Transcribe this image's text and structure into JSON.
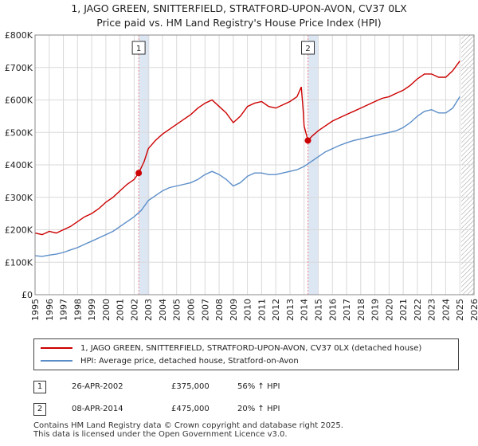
{
  "title_line1": "1, JAGO GREEN, SNITTERFIELD, STRATFORD-UPON-AVON, CV37 0LX",
  "title_line2": "Price paid vs. HM Land Registry's House Price Index (HPI)",
  "colors": {
    "property": "#cc0000",
    "hpi": "#5b8ec9",
    "sale_band": "#dde6f3",
    "future_hatch": "#999999"
  },
  "chart_data": {
    "type": "line",
    "xlim": [
      1995,
      2026
    ],
    "ylim": [
      0,
      800000
    ],
    "x_ticks": [
      1995,
      1996,
      1997,
      1998,
      1999,
      2000,
      2001,
      2002,
      2003,
      2004,
      2005,
      2006,
      2007,
      2008,
      2009,
      2010,
      2011,
      2012,
      2013,
      2014,
      2015,
      2016,
      2017,
      2018,
      2019,
      2020,
      2021,
      2022,
      2023,
      2024,
      2025,
      2026
    ],
    "y_ticks": [
      0,
      100000,
      200000,
      300000,
      400000,
      500000,
      600000,
      700000,
      800000
    ],
    "y_tick_labels": [
      "£0",
      "£100K",
      "£200K",
      "£300K",
      "£400K",
      "£500K",
      "£600K",
      "£700K",
      "£800K"
    ],
    "series": [
      {
        "name": "1, JAGO GREEN, SNITTERFIELD, STRATFORD-UPON-AVON, CV37 0LX (detached house)",
        "color": "#cc0000",
        "points": [
          [
            1995,
            190000
          ],
          [
            1995.5,
            185000
          ],
          [
            1996,
            195000
          ],
          [
            1996.5,
            190000
          ],
          [
            1997,
            200000
          ],
          [
            1997.5,
            210000
          ],
          [
            1998,
            225000
          ],
          [
            1998.5,
            240000
          ],
          [
            1999,
            250000
          ],
          [
            1999.5,
            265000
          ],
          [
            2000,
            285000
          ],
          [
            2000.5,
            300000
          ],
          [
            2001,
            320000
          ],
          [
            2001.5,
            340000
          ],
          [
            2002,
            355000
          ],
          [
            2002.32,
            375000
          ],
          [
            2002.7,
            410000
          ],
          [
            2003,
            450000
          ],
          [
            2003.5,
            475000
          ],
          [
            2004,
            495000
          ],
          [
            2004.5,
            510000
          ],
          [
            2005,
            525000
          ],
          [
            2005.5,
            540000
          ],
          [
            2006,
            555000
          ],
          [
            2006.5,
            575000
          ],
          [
            2007,
            590000
          ],
          [
            2007.5,
            600000
          ],
          [
            2008,
            580000
          ],
          [
            2008.5,
            560000
          ],
          [
            2009,
            530000
          ],
          [
            2009.5,
            550000
          ],
          [
            2010,
            580000
          ],
          [
            2010.5,
            590000
          ],
          [
            2011,
            595000
          ],
          [
            2011.5,
            580000
          ],
          [
            2012,
            575000
          ],
          [
            2012.5,
            585000
          ],
          [
            2013,
            595000
          ],
          [
            2013.5,
            610000
          ],
          [
            2013.8,
            640000
          ],
          [
            2013.95,
            560000
          ],
          [
            2014,
            520000
          ],
          [
            2014.27,
            475000
          ],
          [
            2014.6,
            490000
          ],
          [
            2015,
            505000
          ],
          [
            2015.5,
            520000
          ],
          [
            2016,
            535000
          ],
          [
            2016.5,
            545000
          ],
          [
            2017,
            555000
          ],
          [
            2017.5,
            565000
          ],
          [
            2018,
            575000
          ],
          [
            2018.5,
            585000
          ],
          [
            2019,
            595000
          ],
          [
            2019.5,
            605000
          ],
          [
            2020,
            610000
          ],
          [
            2020.5,
            620000
          ],
          [
            2021,
            630000
          ],
          [
            2021.5,
            645000
          ],
          [
            2022,
            665000
          ],
          [
            2022.5,
            680000
          ],
          [
            2023,
            680000
          ],
          [
            2023.5,
            670000
          ],
          [
            2024,
            670000
          ],
          [
            2024.5,
            690000
          ],
          [
            2025,
            720000
          ]
        ]
      },
      {
        "name": "HPI: Average price, detached house, Stratford-on-Avon",
        "color": "#5b8ec9",
        "points": [
          [
            1995,
            120000
          ],
          [
            1995.5,
            118000
          ],
          [
            1996,
            122000
          ],
          [
            1996.5,
            125000
          ],
          [
            1997,
            130000
          ],
          [
            1997.5,
            138000
          ],
          [
            1998,
            145000
          ],
          [
            1998.5,
            155000
          ],
          [
            1999,
            165000
          ],
          [
            1999.5,
            175000
          ],
          [
            2000,
            185000
          ],
          [
            2000.5,
            195000
          ],
          [
            2001,
            210000
          ],
          [
            2001.5,
            225000
          ],
          [
            2002,
            240000
          ],
          [
            2002.5,
            260000
          ],
          [
            2003,
            290000
          ],
          [
            2003.5,
            305000
          ],
          [
            2004,
            320000
          ],
          [
            2004.5,
            330000
          ],
          [
            2005,
            335000
          ],
          [
            2005.5,
            340000
          ],
          [
            2006,
            345000
          ],
          [
            2006.5,
            355000
          ],
          [
            2007,
            370000
          ],
          [
            2007.5,
            380000
          ],
          [
            2008,
            370000
          ],
          [
            2008.5,
            355000
          ],
          [
            2009,
            335000
          ],
          [
            2009.5,
            345000
          ],
          [
            2010,
            365000
          ],
          [
            2010.5,
            375000
          ],
          [
            2011,
            375000
          ],
          [
            2011.5,
            370000
          ],
          [
            2012,
            370000
          ],
          [
            2012.5,
            375000
          ],
          [
            2013,
            380000
          ],
          [
            2013.5,
            385000
          ],
          [
            2014,
            395000
          ],
          [
            2014.5,
            410000
          ],
          [
            2015,
            425000
          ],
          [
            2015.5,
            440000
          ],
          [
            2016,
            450000
          ],
          [
            2016.5,
            460000
          ],
          [
            2017,
            468000
          ],
          [
            2017.5,
            475000
          ],
          [
            2018,
            480000
          ],
          [
            2018.5,
            485000
          ],
          [
            2019,
            490000
          ],
          [
            2019.5,
            495000
          ],
          [
            2020,
            500000
          ],
          [
            2020.5,
            505000
          ],
          [
            2021,
            515000
          ],
          [
            2021.5,
            530000
          ],
          [
            2022,
            550000
          ],
          [
            2022.5,
            565000
          ],
          [
            2023,
            570000
          ],
          [
            2023.5,
            560000
          ],
          [
            2024,
            560000
          ],
          [
            2024.5,
            575000
          ],
          [
            2025,
            610000
          ]
        ]
      }
    ],
    "sales": [
      {
        "label": "1",
        "x": 2002.32,
        "y": 375000
      },
      {
        "label": "2",
        "x": 2014.27,
        "y": 475000
      }
    ],
    "future_from": 2025.1
  },
  "legend": {
    "property": "1, JAGO GREEN, SNITTERFIELD, STRATFORD-UPON-AVON, CV37 0LX (detached house)",
    "hpi": "HPI: Average price, detached house, Stratford-on-Avon"
  },
  "sales_table": [
    {
      "num": "1",
      "date": "26-APR-2002",
      "price": "£375,000",
      "hpi": "56% ↑ HPI"
    },
    {
      "num": "2",
      "date": "08-APR-2014",
      "price": "£475,000",
      "hpi": "20% ↑ HPI"
    }
  ],
  "footer": {
    "line1": "Contains HM Land Registry data © Crown copyright and database right 2025.",
    "line2": "This data is licensed under the Open Government Licence v3.0."
  }
}
